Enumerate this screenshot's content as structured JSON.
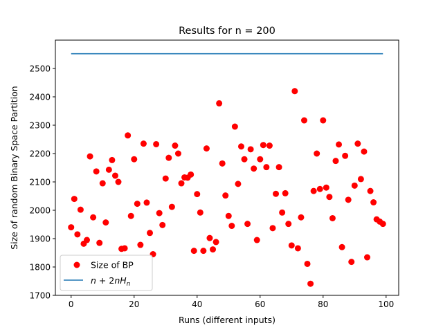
{
  "chart_data": {
    "type": "scatter",
    "title": "Results for n = 200",
    "xlabel": "Runs (different inputs)",
    "ylabel": "Size of random Binary Space Partition",
    "xlim": [
      -5,
      104
    ],
    "ylim": [
      1700,
      2600
    ],
    "xticks": [
      0,
      20,
      40,
      60,
      80,
      100
    ],
    "yticks": [
      1700,
      1800,
      1900,
      2000,
      2100,
      2200,
      2300,
      2400,
      2500
    ],
    "grid": false,
    "legend_position": "lower-left",
    "series": [
      {
        "name": "Size of BP",
        "kind": "scatter",
        "color": "#ff0000",
        "x": [
          0,
          1,
          2,
          3,
          4,
          5,
          6,
          7,
          8,
          9,
          10,
          11,
          12,
          13,
          14,
          15,
          16,
          17,
          18,
          19,
          20,
          21,
          22,
          23,
          24,
          25,
          26,
          27,
          28,
          29,
          30,
          31,
          32,
          33,
          34,
          35,
          36,
          37,
          38,
          39,
          40,
          41,
          42,
          43,
          44,
          45,
          46,
          47,
          48,
          49,
          50,
          51,
          52,
          53,
          54,
          55,
          56,
          57,
          58,
          59,
          60,
          61,
          62,
          63,
          64,
          65,
          66,
          67,
          68,
          69,
          70,
          71,
          72,
          73,
          74,
          75,
          76,
          77,
          78,
          79,
          80,
          81,
          82,
          83,
          84,
          85,
          86,
          87,
          88,
          89,
          90,
          91,
          92,
          93,
          94,
          95,
          96,
          97,
          98,
          99
        ],
        "y": [
          1940,
          2040,
          1915,
          2002,
          1882,
          1895,
          2190,
          1975,
          2137,
          1885,
          2095,
          1957,
          2143,
          2177,
          2122,
          2100,
          1864,
          1866,
          2264,
          1980,
          2180,
          2023,
          1878,
          2235,
          2027,
          1920,
          1845,
          2233,
          1990,
          1948,
          2112,
          2185,
          2012,
          2228,
          2200,
          2095,
          2116,
          2115,
          2126,
          1857,
          2057,
          1992,
          1857,
          2218,
          1902,
          1862,
          1888,
          2377,
          2165,
          2052,
          1980,
          1945,
          2295,
          2093,
          2225,
          2180,
          1952,
          2215,
          2147,
          1895,
          2180,
          2230,
          2152,
          2228,
          1937,
          2058,
          2152,
          1992,
          2060,
          1952,
          1876,
          2420,
          1866,
          1975,
          2317,
          1811,
          1741,
          2068,
          2200,
          2075,
          2317,
          2080,
          2047,
          1972,
          2174,
          2232,
          1870,
          2192,
          2037,
          1818,
          2087,
          2235,
          2110,
          2207,
          1834,
          2068,
          2028,
          1968,
          1960,
          1952
        ]
      },
      {
        "name": "n + 2nH_n",
        "kind": "line",
        "color": "#1f77b4",
        "x": [
          0,
          99
        ],
        "y": [
          2552,
          2552
        ]
      }
    ]
  }
}
